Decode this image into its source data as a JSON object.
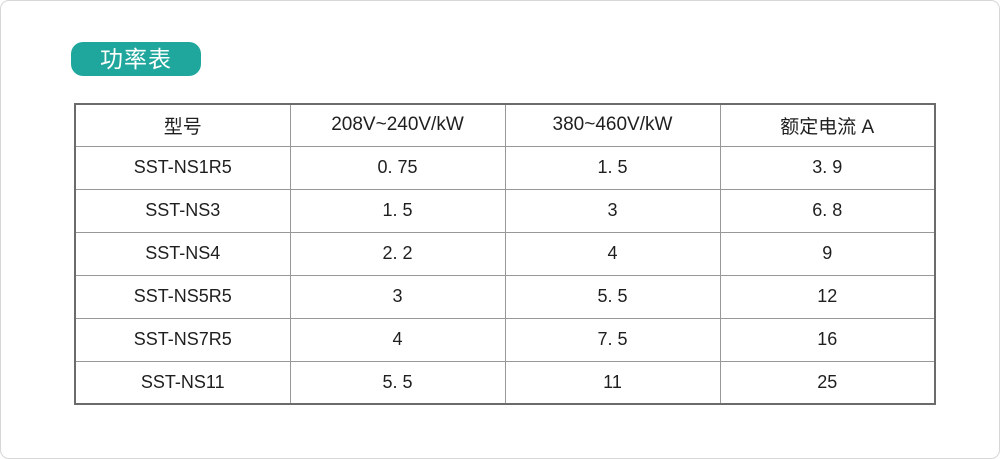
{
  "page": {
    "badge_label": "功率表"
  },
  "colors": {
    "badge_background": "#1fa79d",
    "badge_text": "#ffffff",
    "table_outer_border": "#6b6b6b",
    "table_inner_border": "#989898",
    "text": "#1f1f1f",
    "card_border": "#d7d7d7"
  },
  "table": {
    "headers": [
      "型号",
      "208V~240V/kW",
      "380~460V/kW",
      "额定电流 A"
    ],
    "rows": [
      [
        "SST-NS1R5",
        "0. 75",
        "1. 5",
        "3. 9"
      ],
      [
        "SST-NS3",
        "1. 5",
        "3",
        "6. 8"
      ],
      [
        "SST-NS4",
        "2. 2",
        "4",
        "9"
      ],
      [
        "SST-NS5R5",
        "3",
        "5. 5",
        "12"
      ],
      [
        "SST-NS7R5",
        "4",
        "7. 5",
        "16"
      ],
      [
        "SST-NS11",
        "5. 5",
        "11",
        "25"
      ]
    ]
  }
}
